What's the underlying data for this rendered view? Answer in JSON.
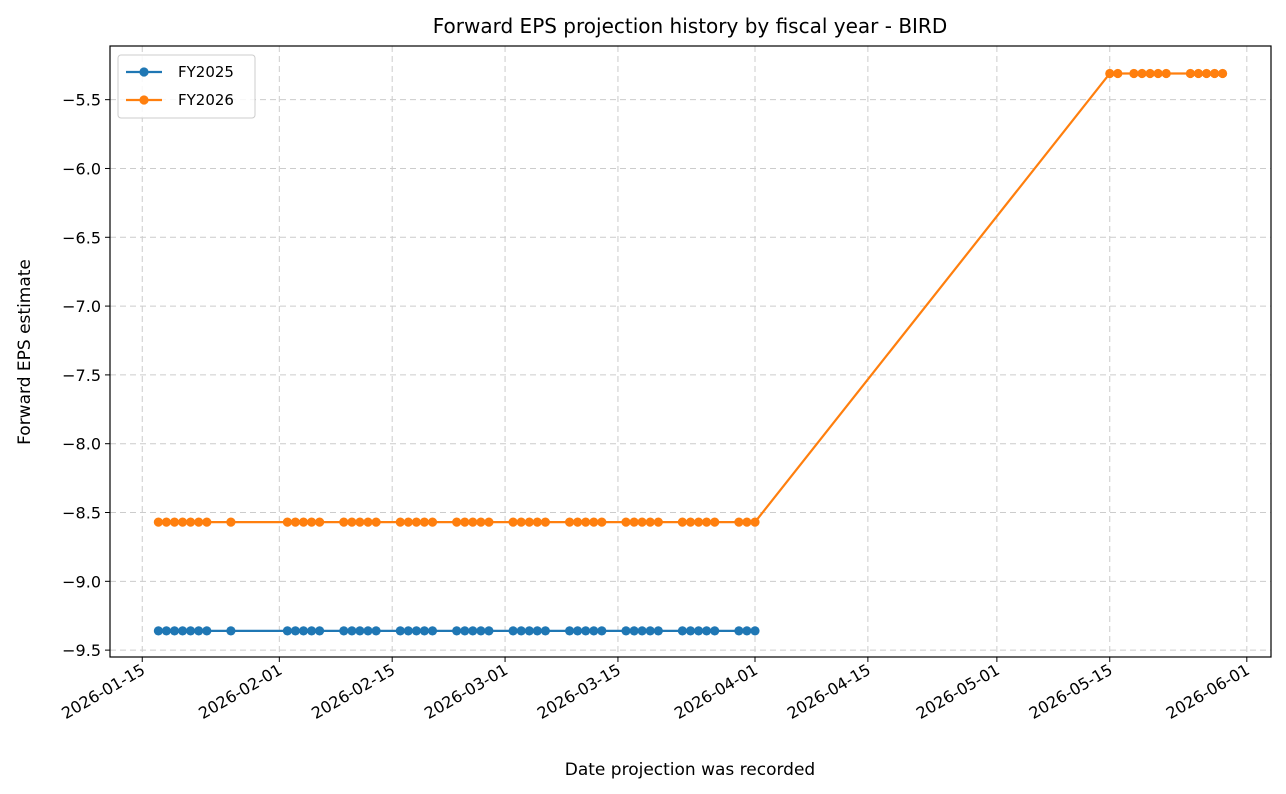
{
  "chart_data": {
    "type": "line",
    "title": "Forward EPS projection history by fiscal year - BIRD",
    "xlabel": "Date projection was recorded",
    "ylabel": "Forward EPS estimate",
    "x_type": "date",
    "xlim": [
      "2026-01-11",
      "2026-06-04"
    ],
    "ylim": [
      -9.55,
      -5.11
    ],
    "x_ticks": [
      "2026-01-15",
      "2026-02-01",
      "2026-02-15",
      "2026-03-01",
      "2026-03-15",
      "2026-04-01",
      "2026-04-15",
      "2026-05-01",
      "2026-05-15",
      "2026-06-01"
    ],
    "y_ticks": [
      -5.5,
      -6.0,
      -6.5,
      -7.0,
      -7.5,
      -8.0,
      -8.5,
      -9.0,
      -9.5
    ],
    "y_tick_labels": [
      "−5.5",
      "−6.0",
      "−6.5",
      "−7.0",
      "−7.5",
      "−8.0",
      "−8.5",
      "−9.0",
      "−9.5"
    ],
    "grid": true,
    "legend_position": "top-left",
    "series": [
      {
        "name": "FY2025",
        "color": "#1f77b4",
        "marker": "circle",
        "x": [
          "2026-01-17",
          "2026-01-18",
          "2026-01-19",
          "2026-01-20",
          "2026-01-21",
          "2026-01-22",
          "2026-01-23",
          "2026-01-26",
          "2026-02-02",
          "2026-02-03",
          "2026-02-04",
          "2026-02-05",
          "2026-02-06",
          "2026-02-09",
          "2026-02-10",
          "2026-02-11",
          "2026-02-12",
          "2026-02-13",
          "2026-02-16",
          "2026-02-17",
          "2026-02-18",
          "2026-02-19",
          "2026-02-20",
          "2026-02-23",
          "2026-02-24",
          "2026-02-25",
          "2026-02-26",
          "2026-02-27",
          "2026-03-02",
          "2026-03-03",
          "2026-03-04",
          "2026-03-05",
          "2026-03-06",
          "2026-03-09",
          "2026-03-10",
          "2026-03-11",
          "2026-03-12",
          "2026-03-13",
          "2026-03-16",
          "2026-03-17",
          "2026-03-18",
          "2026-03-19",
          "2026-03-20",
          "2026-03-23",
          "2026-03-24",
          "2026-03-25",
          "2026-03-26",
          "2026-03-27",
          "2026-03-30",
          "2026-03-31",
          "2026-04-01"
        ],
        "y": [
          -9.36,
          -9.36,
          -9.36,
          -9.36,
          -9.36,
          -9.36,
          -9.36,
          -9.36,
          -9.36,
          -9.36,
          -9.36,
          -9.36,
          -9.36,
          -9.36,
          -9.36,
          -9.36,
          -9.36,
          -9.36,
          -9.36,
          -9.36,
          -9.36,
          -9.36,
          -9.36,
          -9.36,
          -9.36,
          -9.36,
          -9.36,
          -9.36,
          -9.36,
          -9.36,
          -9.36,
          -9.36,
          -9.36,
          -9.36,
          -9.36,
          -9.36,
          -9.36,
          -9.36,
          -9.36,
          -9.36,
          -9.36,
          -9.36,
          -9.36,
          -9.36,
          -9.36,
          -9.36,
          -9.36,
          -9.36,
          -9.36,
          -9.36,
          -9.36
        ]
      },
      {
        "name": "FY2026",
        "color": "#ff7f0e",
        "marker": "circle",
        "x": [
          "2026-01-17",
          "2026-01-18",
          "2026-01-19",
          "2026-01-20",
          "2026-01-21",
          "2026-01-22",
          "2026-01-23",
          "2026-01-26",
          "2026-02-02",
          "2026-02-03",
          "2026-02-04",
          "2026-02-05",
          "2026-02-06",
          "2026-02-09",
          "2026-02-10",
          "2026-02-11",
          "2026-02-12",
          "2026-02-13",
          "2026-02-16",
          "2026-02-17",
          "2026-02-18",
          "2026-02-19",
          "2026-02-20",
          "2026-02-23",
          "2026-02-24",
          "2026-02-25",
          "2026-02-26",
          "2026-02-27",
          "2026-03-02",
          "2026-03-03",
          "2026-03-04",
          "2026-03-05",
          "2026-03-06",
          "2026-03-09",
          "2026-03-10",
          "2026-03-11",
          "2026-03-12",
          "2026-03-13",
          "2026-03-16",
          "2026-03-17",
          "2026-03-18",
          "2026-03-19",
          "2026-03-20",
          "2026-03-23",
          "2026-03-24",
          "2026-03-25",
          "2026-03-26",
          "2026-03-27",
          "2026-03-30",
          "2026-03-31",
          "2026-04-01",
          "2026-05-15",
          "2026-05-16",
          "2026-05-18",
          "2026-05-19",
          "2026-05-20",
          "2026-05-21",
          "2026-05-22",
          "2026-05-25",
          "2026-05-26",
          "2026-05-27",
          "2026-05-28",
          "2026-05-29"
        ],
        "y": [
          -8.57,
          -8.57,
          -8.57,
          -8.57,
          -8.57,
          -8.57,
          -8.57,
          -8.57,
          -8.57,
          -8.57,
          -8.57,
          -8.57,
          -8.57,
          -8.57,
          -8.57,
          -8.57,
          -8.57,
          -8.57,
          -8.57,
          -8.57,
          -8.57,
          -8.57,
          -8.57,
          -8.57,
          -8.57,
          -8.57,
          -8.57,
          -8.57,
          -8.57,
          -8.57,
          -8.57,
          -8.57,
          -8.57,
          -8.57,
          -8.57,
          -8.57,
          -8.57,
          -8.57,
          -8.57,
          -8.57,
          -8.57,
          -8.57,
          -8.57,
          -8.57,
          -8.57,
          -8.57,
          -8.57,
          -8.57,
          -8.57,
          -8.57,
          -8.57,
          -5.31,
          -5.31,
          -5.31,
          -5.31,
          -5.31,
          -5.31,
          -5.31,
          -5.31,
          -5.31,
          -5.31,
          -5.31,
          -5.31
        ]
      }
    ]
  }
}
